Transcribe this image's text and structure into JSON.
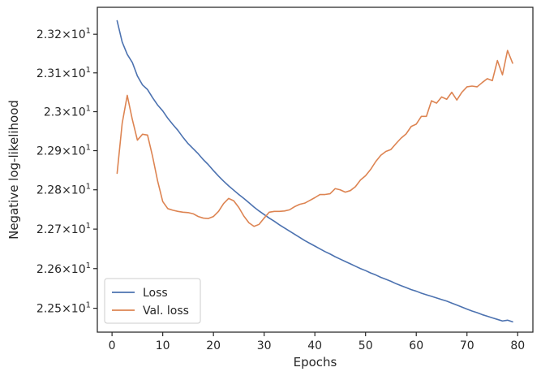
{
  "chart_data": {
    "type": "line",
    "xlabel": "Epochs",
    "ylabel": "Negative log-likelihood",
    "y_scale": "log",
    "grid": false,
    "legend_position": "lower-left",
    "xlim": [
      -2.9,
      83
    ],
    "ylim": [
      22.44,
      23.27
    ],
    "x_ticks": [
      0,
      10,
      20,
      30,
      40,
      50,
      60,
      70,
      80
    ],
    "x_tick_labels": [
      "0",
      "10",
      "20",
      "30",
      "40",
      "50",
      "60",
      "70",
      "80"
    ],
    "y_ticks": [
      22.5,
      22.6,
      22.7,
      22.8,
      22.9,
      23.0,
      23.1,
      23.2
    ],
    "y_tick_labels": [
      {
        "mant": "2.25",
        "exp": "1"
      },
      {
        "mant": "2.26",
        "exp": "1"
      },
      {
        "mant": "2.27",
        "exp": "1"
      },
      {
        "mant": "2.28",
        "exp": "1"
      },
      {
        "mant": "2.29",
        "exp": "1"
      },
      {
        "mant": "2.3",
        "exp": "1"
      },
      {
        "mant": "2.31",
        "exp": "1"
      },
      {
        "mant": "2.32",
        "exp": "1"
      }
    ],
    "times_sign": "×",
    "base": "10",
    "x": [
      1,
      2,
      3,
      4,
      5,
      6,
      7,
      8,
      9,
      10,
      11,
      12,
      13,
      14,
      15,
      16,
      17,
      18,
      19,
      20,
      21,
      22,
      23,
      24,
      25,
      26,
      27,
      28,
      29,
      30,
      31,
      32,
      33,
      34,
      35,
      36,
      37,
      38,
      39,
      40,
      41,
      42,
      43,
      44,
      45,
      46,
      47,
      48,
      49,
      50,
      51,
      52,
      53,
      54,
      55,
      56,
      57,
      58,
      59,
      60,
      61,
      62,
      63,
      64,
      65,
      66,
      67,
      68,
      69,
      70,
      71,
      72,
      73,
      74,
      75,
      76,
      77,
      78,
      79
    ],
    "series": [
      {
        "name": "Loss",
        "color": "#4c72b0",
        "values": [
          23.235,
          23.18,
          23.148,
          23.127,
          23.092,
          23.069,
          23.057,
          23.036,
          23.017,
          23.002,
          22.983,
          22.967,
          22.952,
          22.934,
          22.918,
          22.905,
          22.892,
          22.877,
          22.864,
          22.849,
          22.835,
          22.822,
          22.81,
          22.799,
          22.788,
          22.778,
          22.767,
          22.756,
          22.746,
          22.737,
          22.728,
          22.72,
          22.711,
          22.703,
          22.695,
          22.687,
          22.679,
          22.671,
          22.664,
          22.657,
          22.65,
          22.643,
          22.637,
          22.63,
          22.624,
          22.618,
          22.612,
          22.606,
          22.6,
          22.595,
          22.589,
          22.584,
          22.578,
          22.573,
          22.568,
          22.562,
          22.557,
          22.552,
          22.547,
          22.543,
          22.538,
          22.534,
          22.53,
          22.526,
          22.522,
          22.518,
          22.513,
          22.508,
          22.503,
          22.498,
          22.493,
          22.489,
          22.484,
          22.48,
          22.476,
          22.472,
          22.468,
          22.47,
          22.466
        ]
      },
      {
        "name": "Val. loss",
        "color": "#dd8452",
        "values": [
          22.842,
          22.97,
          23.042,
          22.98,
          22.927,
          22.942,
          22.94,
          22.885,
          22.822,
          22.77,
          22.752,
          22.748,
          22.745,
          22.743,
          22.742,
          22.739,
          22.732,
          22.728,
          22.727,
          22.732,
          22.745,
          22.765,
          22.778,
          22.772,
          22.755,
          22.733,
          22.716,
          22.707,
          22.712,
          22.728,
          22.743,
          22.745,
          22.745,
          22.746,
          22.749,
          22.757,
          22.763,
          22.766,
          22.773,
          22.78,
          22.788,
          22.788,
          22.79,
          22.803,
          22.8,
          22.794,
          22.798,
          22.808,
          22.825,
          22.836,
          22.852,
          22.872,
          22.888,
          22.898,
          22.903,
          22.918,
          22.932,
          22.943,
          22.962,
          22.968,
          22.988,
          22.988,
          23.028,
          23.022,
          23.038,
          23.032,
          23.05,
          23.03,
          23.05,
          23.064,
          23.066,
          23.064,
          23.075,
          23.085,
          23.08,
          23.132,
          23.095,
          23.158,
          23.125
        ]
      }
    ]
  }
}
